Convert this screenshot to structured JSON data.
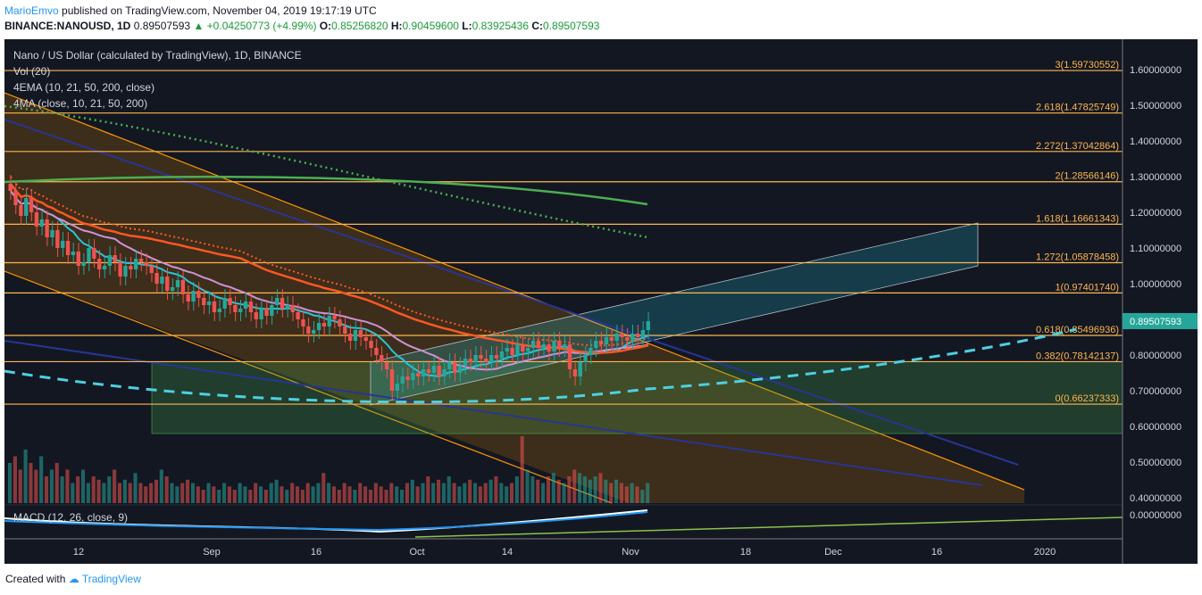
{
  "header": {
    "author": "MarioEmvo",
    "published": "published on TradingView.com, November 04, 2019 19:17:19 UTC",
    "symbol": "BINANCE:NANOUSD, 1D",
    "price": "0.89507593",
    "change": "+0.04250773 (+4.99%)",
    "o_label": "O:",
    "o_val": "0.85256820",
    "h_label": "H:",
    "h_val": "0.90459600",
    "l_label": "L:",
    "l_val": "0.83925436",
    "c_label": "C:",
    "c_val": "0.89507593"
  },
  "legend": {
    "title": "Nano / US Dollar (calculated by TradingView), 1D, BINANCE",
    "vol": "Vol (20)",
    "ema": "4EMA (10, 21, 50, 200, close)",
    "ma": "4MA (close, 10, 21, 50, 200)",
    "macd": "MACD (12, 26, close, 9)"
  },
  "footer": {
    "created": "Created with",
    "brand": "TradingView"
  },
  "colors": {
    "bg": "#131722",
    "fib": "#ffb74d",
    "candle_up": "#26a69a",
    "candle_dn": "#ef5350",
    "accent": "#2196f3",
    "ema_orange": "#ff5722",
    "ma_green": "#4caf50",
    "cyan": "#26c6da"
  },
  "chart_data": {
    "type": "candlestick",
    "title": "Nano / US Dollar (calculated by TradingView), 1D, BINANCE",
    "ylim": [
      0.36,
      1.66
    ],
    "y_ticks": [
      "1.60000000",
      "1.50000000",
      "1.40000000",
      "1.30000000",
      "1.20000000",
      "1.10000000",
      "1.00000000",
      "0.80000000",
      "0.70000000",
      "0.60000000",
      "0.50000000",
      "0.40000000"
    ],
    "macd_tick": "0.00000000",
    "x_ticks": [
      "12",
      "Sep",
      "16",
      "Oct",
      "14",
      "Nov",
      "18",
      "Dec",
      "16",
      "2020"
    ],
    "last_price": "0.89507593",
    "fib_levels": [
      {
        "label": "3(1.59730552)",
        "value": 1.59730552
      },
      {
        "label": "2.618(1.47825749)",
        "value": 1.47825749
      },
      {
        "label": "2.272(1.37042864)",
        "value": 1.37042864
      },
      {
        "label": "2(1.28566146)",
        "value": 1.28566146
      },
      {
        "label": "1.618(1.16661343)",
        "value": 1.16661343
      },
      {
        "label": "1.272(1.05878458)",
        "value": 1.05878458
      },
      {
        "label": "1(0.97401740)",
        "value": 0.9740174
      },
      {
        "label": "0.618(0.85496936)",
        "value": 0.85496936
      },
      {
        "label": "0.382(0.78142137)",
        "value": 0.78142137
      },
      {
        "label": "0(0.66237333)",
        "value": 0.66237333
      }
    ],
    "closes": [
      1.26,
      1.22,
      1.19,
      1.24,
      1.2,
      1.16,
      1.18,
      1.13,
      1.15,
      1.1,
      1.12,
      1.08,
      1.09,
      1.05,
      1.06,
      1.1,
      1.07,
      1.04,
      1.05,
      1.08,
      1.06,
      1.02,
      1.05,
      1.04,
      1.07,
      1.06,
      1.05,
      1.03,
      1.0,
      1.02,
      0.98,
      0.99,
      1.01,
      0.97,
      0.95,
      0.98,
      0.96,
      0.94,
      0.95,
      0.92,
      0.93,
      0.96,
      0.94,
      0.92,
      0.93,
      0.95,
      0.92,
      0.9,
      0.93,
      0.91,
      0.94,
      0.96,
      0.93,
      0.94,
      0.92,
      0.9,
      0.88,
      0.86,
      0.87,
      0.89,
      0.88,
      0.91,
      0.9,
      0.88,
      0.86,
      0.84,
      0.87,
      0.85,
      0.84,
      0.82,
      0.8,
      0.78,
      0.76,
      0.7,
      0.72,
      0.74,
      0.73,
      0.75,
      0.74,
      0.76,
      0.75,
      0.77,
      0.74,
      0.76,
      0.78,
      0.75,
      0.77,
      0.79,
      0.78,
      0.8,
      0.79,
      0.78,
      0.8,
      0.79,
      0.81,
      0.82,
      0.8,
      0.83,
      0.81,
      0.82,
      0.84,
      0.82,
      0.83,
      0.81,
      0.84,
      0.82,
      0.83,
      0.76,
      0.74,
      0.78,
      0.8,
      0.82,
      0.84,
      0.83,
      0.85,
      0.84,
      0.86,
      0.85,
      0.84,
      0.86,
      0.85,
      0.87,
      0.895
    ],
    "volume": [
      0.6,
      0.7,
      0.5,
      0.8,
      0.6,
      0.5,
      0.7,
      0.4,
      0.5,
      0.6,
      0.4,
      0.5,
      0.3,
      0.4,
      0.5,
      0.3,
      0.4,
      0.35,
      0.3,
      0.4,
      0.5,
      0.3,
      0.35,
      0.3,
      0.45,
      0.3,
      0.25,
      0.3,
      0.35,
      0.5,
      0.4,
      0.3,
      0.25,
      0.3,
      0.35,
      0.3,
      0.25,
      0.2,
      0.3,
      0.25,
      0.2,
      0.3,
      0.25,
      0.2,
      0.3,
      0.25,
      0.2,
      0.3,
      0.25,
      0.2,
      0.3,
      0.35,
      0.25,
      0.2,
      0.3,
      0.25,
      0.2,
      0.3,
      0.25,
      0.3,
      0.45,
      0.3,
      0.25,
      0.2,
      0.3,
      0.25,
      0.2,
      0.3,
      0.25,
      0.2,
      0.3,
      0.25,
      0.2,
      0.3,
      0.25,
      0.2,
      0.3,
      0.35,
      0.25,
      0.3,
      0.4,
      0.3,
      0.35,
      0.3,
      0.4,
      0.3,
      0.25,
      0.3,
      0.35,
      0.3,
      0.25,
      0.3,
      0.35,
      0.4,
      0.3,
      0.25,
      0.3,
      0.4,
      1.0,
      0.5,
      0.4,
      0.35,
      0.3,
      0.4,
      0.45,
      0.35,
      0.3,
      0.4,
      0.5,
      0.45,
      0.4,
      0.35,
      0.4,
      0.45,
      0.35,
      0.3,
      0.35,
      0.3,
      0.25,
      0.3,
      0.25,
      0.2,
      0.3
    ]
  }
}
